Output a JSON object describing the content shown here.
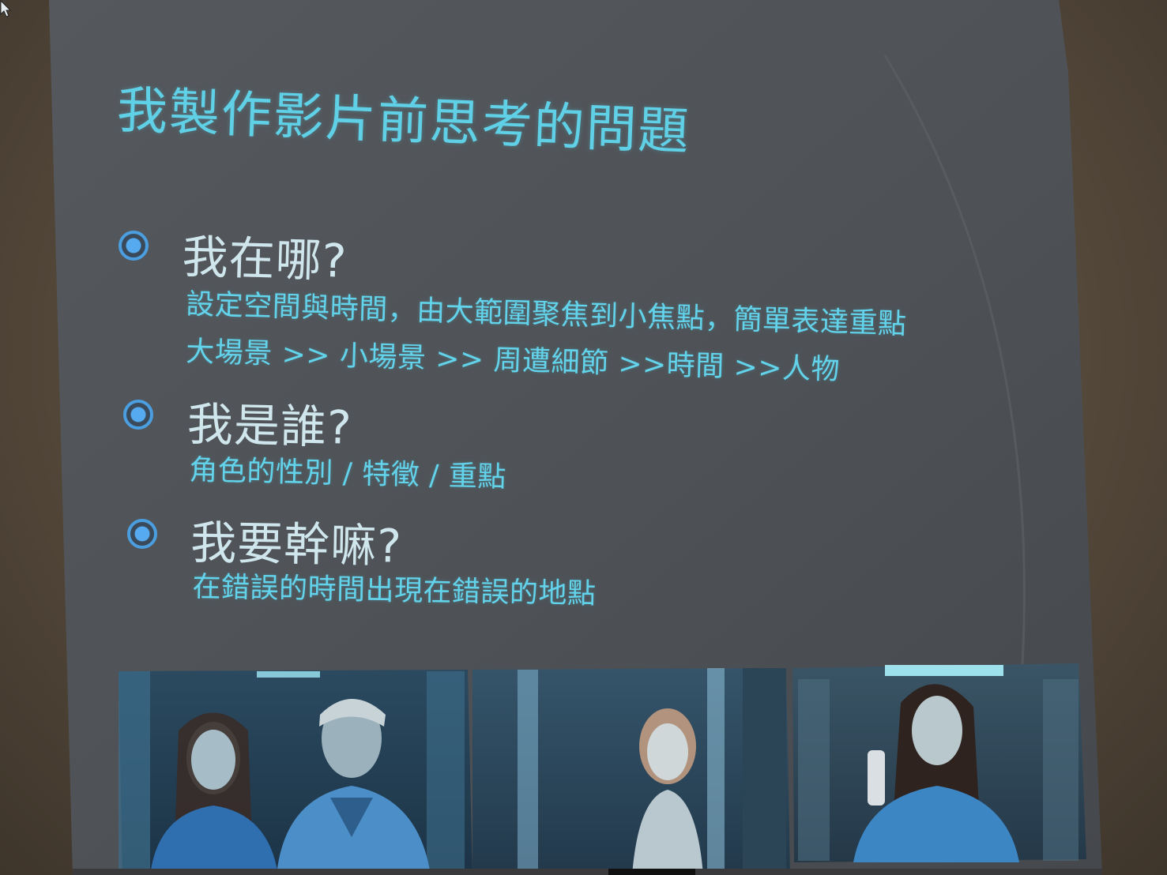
{
  "slide": {
    "title": "我製作影片前思考的問題",
    "items": [
      {
        "heading": "我在哪?",
        "lines": [
          "設定空間與時間，由大範圍聚焦到小焦點，簡單表達重點",
          "大場景 >> 小場景 >> 周遭細節 >>時間 >>人物"
        ]
      },
      {
        "heading": "我是誰?",
        "lines": [
          "角色的性別 / 特徵 / 重點"
        ]
      },
      {
        "heading": "我要幹嘛?",
        "lines": [
          "在錯誤的時間出現在錯誤的地點"
        ]
      }
    ],
    "colors": {
      "slide_bg": "#4f5257",
      "title": "#5fd0e6",
      "heading": "#cfe6ec",
      "body": "#62d3ea",
      "bullet": "#4b9ee0"
    },
    "images": [
      {
        "icon": "hospital-corridor-nurse-and-doctor-photo"
      },
      {
        "icon": "hospital-corridor-girl-photo"
      },
      {
        "icon": "elevator-nurse-photo"
      }
    ]
  }
}
